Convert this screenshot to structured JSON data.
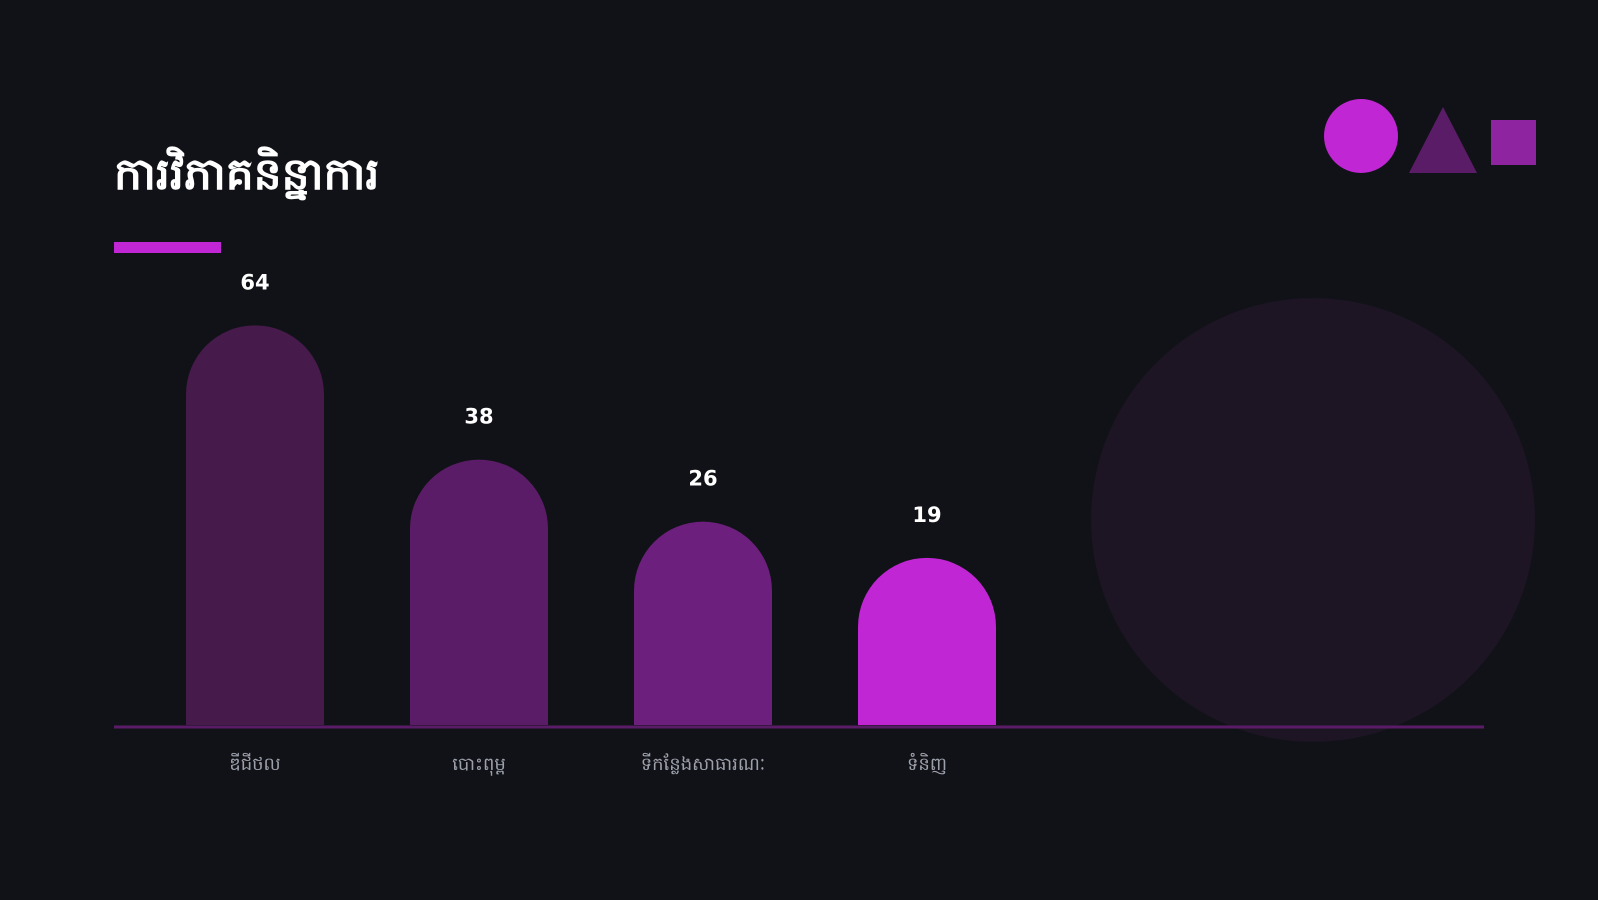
{
  "chart_data": {
    "type": "bar",
    "title": "ការវិភាគនិន្នាការ",
    "categories": [
      "ឌីជីថល",
      "បោះពុម្ព",
      "ទីកន្លែងសាធារណៈ",
      "ទំនិញ"
    ],
    "values": [
      64,
      38,
      26,
      19
    ],
    "colors": [
      "#461a4b",
      "#5b1c67",
      "#6c1f7c",
      "#c026d3"
    ],
    "ylim": [
      0,
      78
    ]
  }
}
